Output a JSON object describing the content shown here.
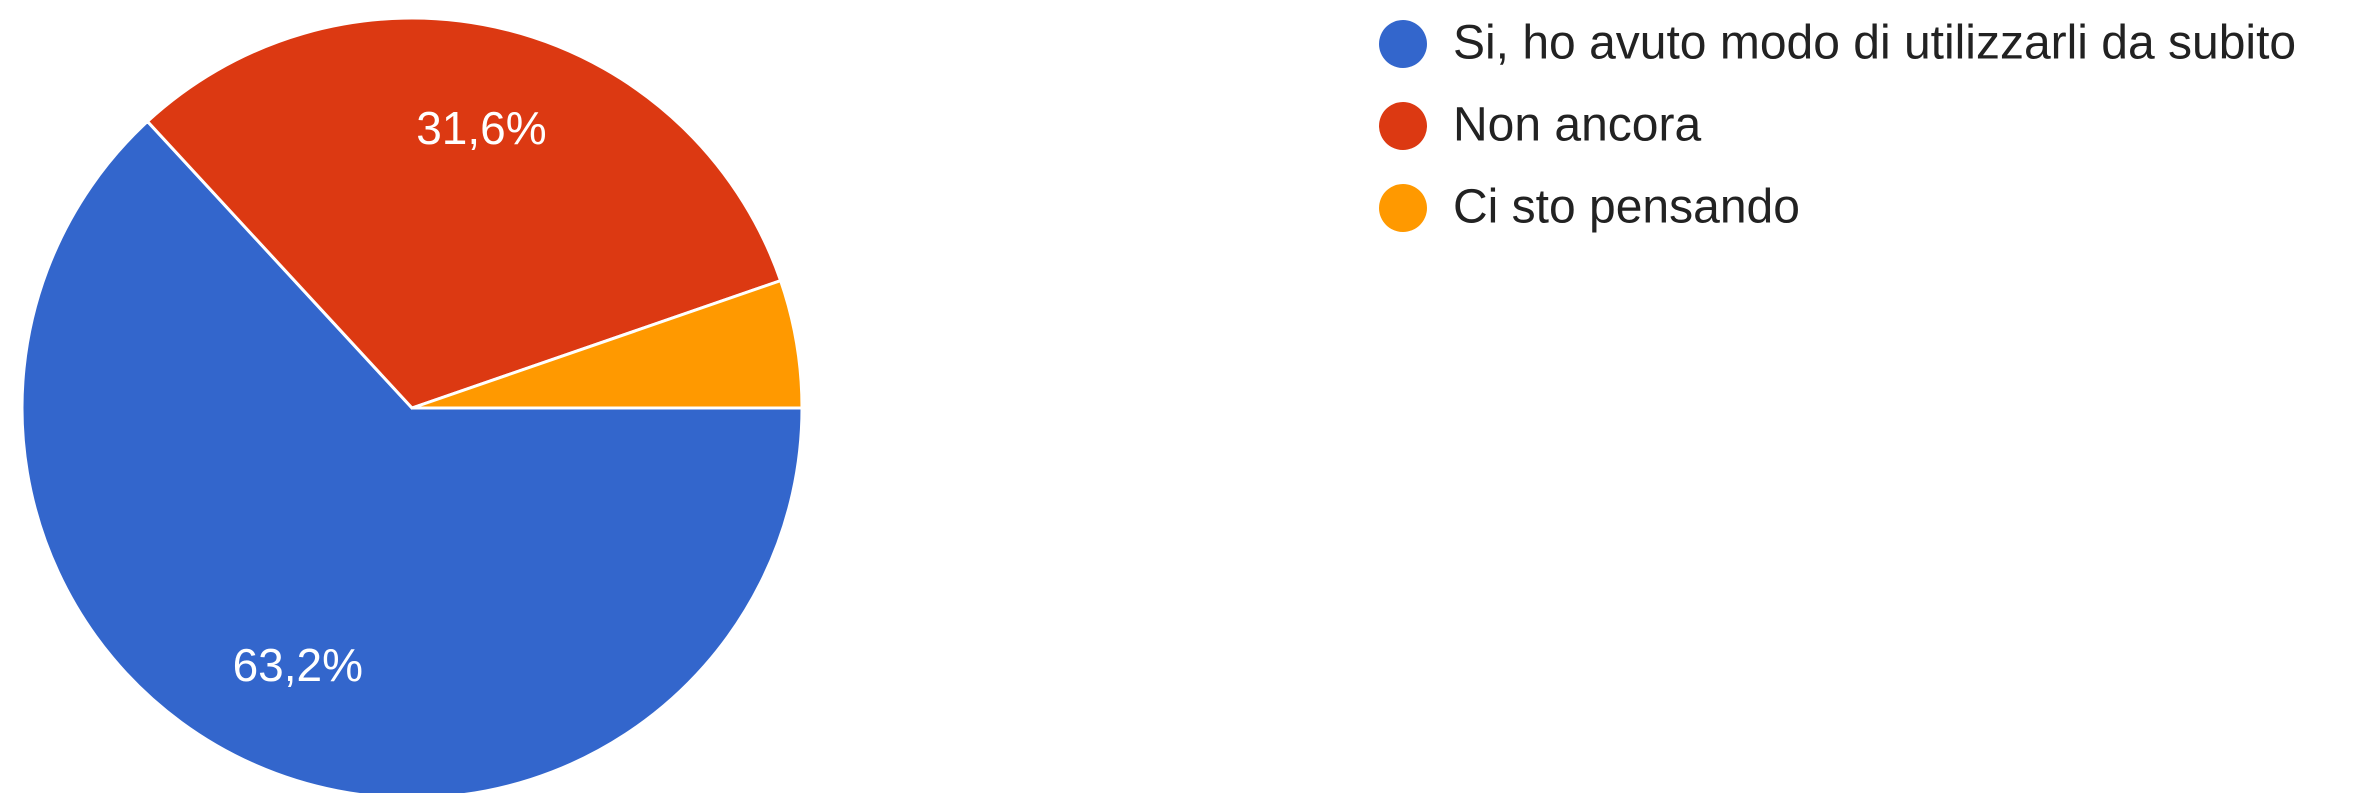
{
  "chart_data": {
    "type": "pie",
    "categories": [
      "Si, ho avuto modo di utilizzarli da subito",
      "Non ancora",
      "Ci sto pensando"
    ],
    "values": [
      63.2,
      31.6,
      5.3
    ],
    "value_labels": [
      "63,2%",
      "31,6%",
      null
    ],
    "colors": [
      "#3366cc",
      "#dc3912",
      "#ff9900"
    ],
    "legend": "right"
  }
}
